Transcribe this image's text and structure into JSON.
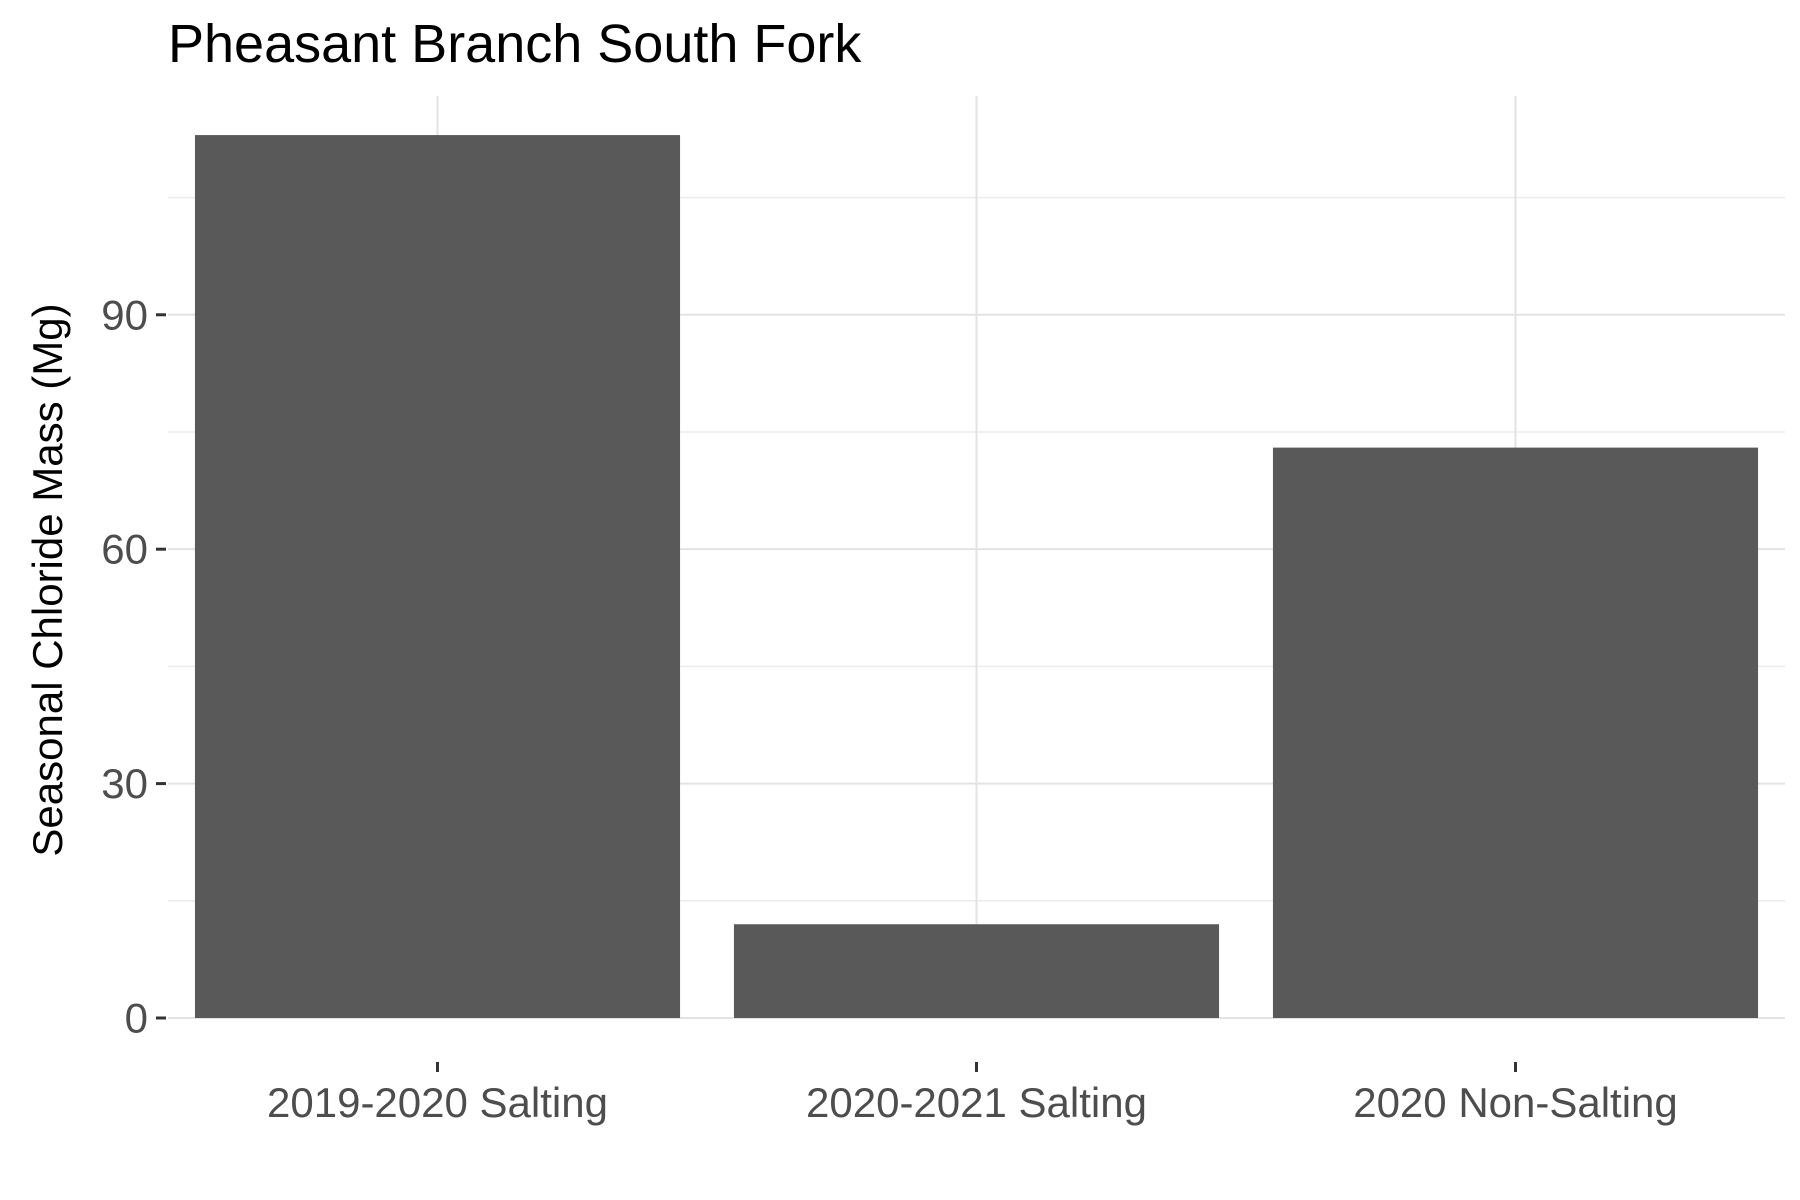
{
  "chart_data": {
    "type": "bar",
    "title": "Pheasant Branch South Fork",
    "xlabel": "",
    "ylabel": "Seasonal Chloride Mass (Mg)",
    "categories": [
      "2019-2020 Salting",
      "2020-2021 Salting",
      "2020 Non-Salting"
    ],
    "values": [
      113,
      12,
      73
    ],
    "ylim": [
      0,
      118
    ],
    "yticks": [
      0,
      30,
      60,
      90
    ],
    "yminor": [
      15,
      45,
      75,
      105
    ],
    "grid": true,
    "legend": "none",
    "colors": {
      "bar": "#595959",
      "grid_major": "#e3e3e3",
      "grid_minor": "#ebebeb",
      "tick_text": "#4d4d4d"
    }
  }
}
